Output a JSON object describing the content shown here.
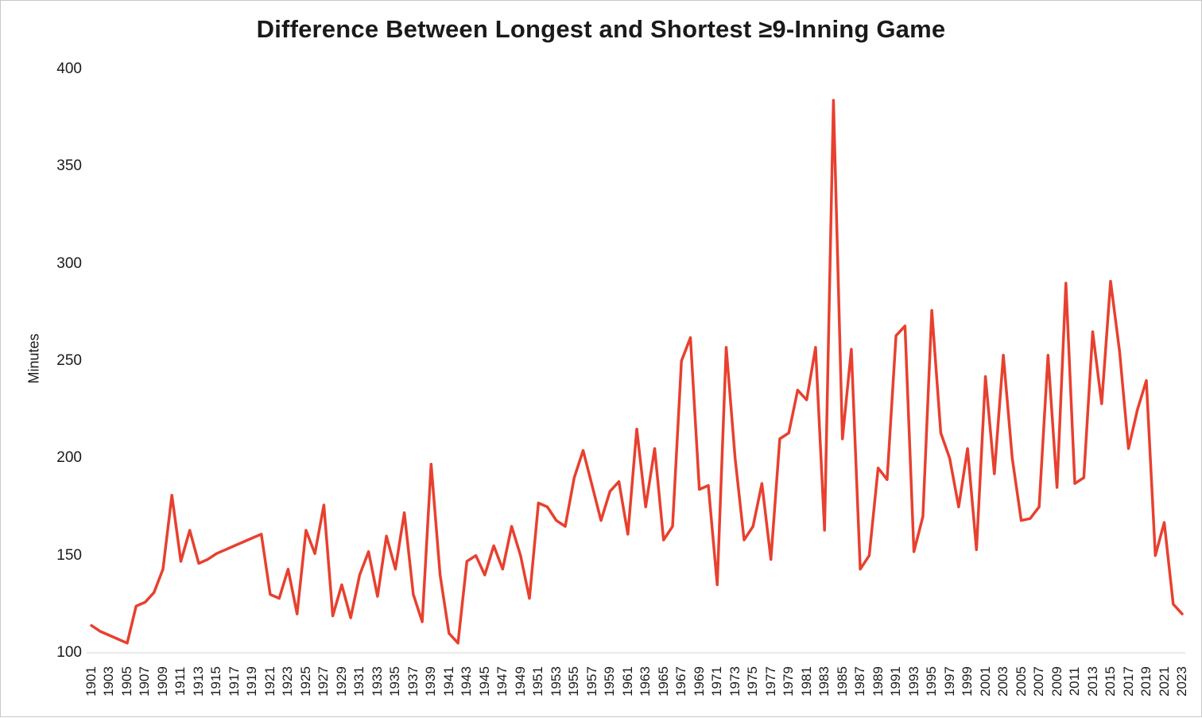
{
  "chart_data": {
    "type": "line",
    "title": "Difference Between Longest and Shortest ≥9-Inning Game",
    "xlabel": "",
    "ylabel": "Minutes",
    "ylim": [
      100,
      400
    ],
    "yticks": [
      100,
      150,
      200,
      250,
      300,
      350,
      400
    ],
    "x_tick_interval": 2,
    "grid": false,
    "legend": "none",
    "line_color": "#e8402f",
    "x": [
      1901,
      1902,
      1903,
      1904,
      1905,
      1906,
      1907,
      1908,
      1909,
      1910,
      1911,
      1912,
      1913,
      1914,
      1915,
      1916,
      1917,
      1918,
      1919,
      1920,
      1921,
      1922,
      1923,
      1924,
      1925,
      1926,
      1927,
      1928,
      1929,
      1930,
      1931,
      1932,
      1933,
      1934,
      1935,
      1936,
      1937,
      1938,
      1939,
      1940,
      1941,
      1942,
      1943,
      1944,
      1945,
      1946,
      1947,
      1948,
      1949,
      1950,
      1951,
      1952,
      1953,
      1954,
      1955,
      1956,
      1957,
      1958,
      1959,
      1960,
      1961,
      1962,
      1963,
      1964,
      1965,
      1966,
      1967,
      1968,
      1969,
      1970,
      1971,
      1972,
      1973,
      1974,
      1975,
      1976,
      1977,
      1978,
      1979,
      1980,
      1981,
      1982,
      1983,
      1984,
      1985,
      1986,
      1987,
      1988,
      1989,
      1990,
      1991,
      1992,
      1993,
      1994,
      1995,
      1996,
      1997,
      1998,
      1999,
      2000,
      2001,
      2002,
      2003,
      2004,
      2005,
      2006,
      2007,
      2008,
      2009,
      2010,
      2011,
      2012,
      2013,
      2014,
      2015,
      2016,
      2017,
      2018,
      2019,
      2020,
      2021,
      2022,
      2023
    ],
    "values": [
      114,
      111,
      109,
      107,
      105,
      124,
      126,
      131,
      143,
      181,
      147,
      163,
      146,
      148,
      151,
      153,
      155,
      157,
      159,
      161,
      130,
      128,
      143,
      120,
      163,
      151,
      176,
      119,
      135,
      118,
      140,
      152,
      129,
      160,
      143,
      172,
      130,
      116,
      197,
      140,
      110,
      105,
      147,
      150,
      140,
      155,
      143,
      165,
      150,
      128,
      177,
      175,
      168,
      165,
      190,
      204,
      186,
      168,
      183,
      188,
      161,
      215,
      175,
      205,
      158,
      165,
      250,
      262,
      184,
      186,
      135,
      257,
      200,
      158,
      165,
      187,
      148,
      210,
      213,
      235,
      230,
      257,
      163,
      384,
      210,
      256,
      143,
      150,
      195,
      189,
      263,
      268,
      152,
      170,
      276,
      213,
      200,
      175,
      205,
      153,
      242,
      192,
      253,
      200,
      168,
      169,
      175,
      253,
      185,
      290,
      187,
      190,
      265,
      228,
      291,
      255,
      205,
      225,
      240,
      150,
      167,
      125,
      120
    ]
  }
}
